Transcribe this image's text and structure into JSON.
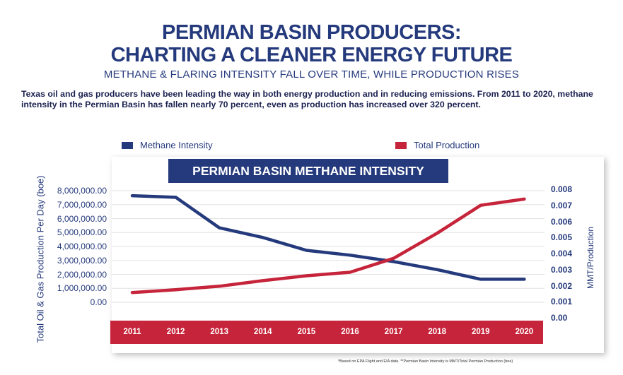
{
  "header": {
    "title_line1": "PERMIAN BASIN PRODUCERS:",
    "title_line2": "CHARTING A CLEANER ENERGY FUTURE",
    "subtitle": "METHANE & FLARING INTENSITY FALL OVER TIME, WHILE PRODUCTION RISES",
    "description": "Texas oil and gas producers have been leading the way in both energy production and in reducing emissions. From 2011 to 2020, methane intensity in the Permian Basin has fallen nearly 70 percent, even as production has increased over 320 percent."
  },
  "colors": {
    "methane": "#253a7c",
    "production": "#c6243a"
  },
  "footnote": "*Based on EPA Flight and EIA data. **Permian Basin Intensity is MMT/Total Permian Production (boe)",
  "chart_data": {
    "type": "line",
    "title": "PERMIAN BASIN METHANE INTENSITY",
    "legend_placement": "top",
    "grid": true,
    "categories": [
      "2011",
      "2012",
      "2013",
      "2014",
      "2015",
      "2016",
      "2017",
      "2018",
      "2019",
      "2020"
    ],
    "ylabel_left": "Total Oil & Gas  Production Per Day (boe)",
    "ylabel_right": "MMT/Production",
    "left_ticks": [
      "8,000,000.00",
      "7,000,000.00",
      "6,000,000.00",
      "5,000,000.00",
      "4,000,000.00",
      "3,000,000.00",
      "2,000,000.00",
      "1,000,000.00",
      "0.00"
    ],
    "right_ticks": [
      "0.008",
      "0.007",
      "0.006",
      "0.005",
      "0.004",
      "0.003",
      "0.002",
      "0.001",
      "0.00"
    ],
    "ylim_left": [
      0,
      8000000
    ],
    "ylim_right": [
      0,
      0.008
    ],
    "series": [
      {
        "name": "Methane Intensity",
        "axis": "right",
        "values": [
          0.0076,
          0.0075,
          0.0056,
          0.005,
          0.0042,
          0.0039,
          0.0035,
          0.003,
          0.0024,
          0.0024
        ]
      },
      {
        "name": "Total Production",
        "axis": "left",
        "values": [
          700000,
          900000,
          1150000,
          1550000,
          1900000,
          2150000,
          3150000,
          4950000,
          6950000,
          7400000
        ]
      }
    ]
  }
}
